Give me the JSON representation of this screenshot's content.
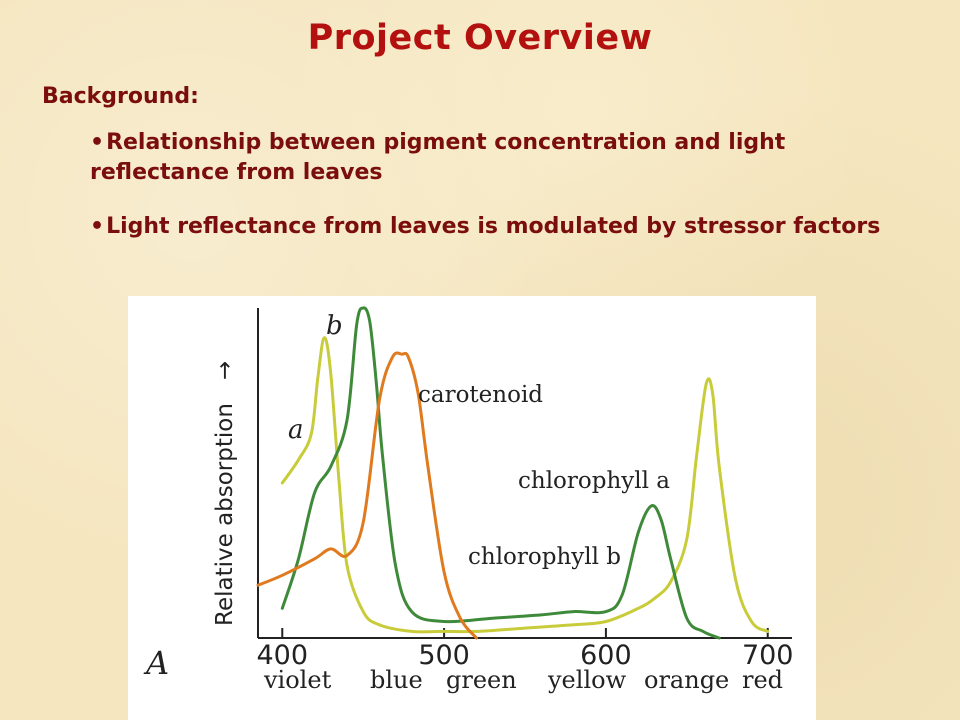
{
  "slide": {
    "title": "Project Overview",
    "heading": "Background:",
    "bullets": [
      "Relationship between pigment concentration and light reflectance from leaves",
      "Light reflectance from leaves is modulated by stressor factors"
    ],
    "bullet_symbol": "•"
  },
  "chart_data": {
    "type": "line",
    "panel_label": "A",
    "ylabel": "Relative absorption",
    "ylabel_arrow": "→",
    "xlim": [
      385,
      715
    ],
    "ylim": [
      0,
      1
    ],
    "x_ticks": [
      400,
      500,
      600,
      700
    ],
    "color_bands": [
      "violet",
      "blue",
      "green",
      "yellow",
      "orange",
      "red"
    ],
    "series": [
      {
        "name": "chlorophyll a",
        "tag": "a",
        "color": "#c8cc3a",
        "x": [
          400,
          410,
          418,
          422,
          426,
          430,
          435,
          440,
          450,
          460,
          480,
          500,
          520,
          550,
          580,
          600,
          620,
          630,
          640,
          650,
          656,
          662,
          666,
          670,
          680,
          690,
          700
        ],
        "y": [
          0.47,
          0.54,
          0.62,
          0.79,
          0.91,
          0.8,
          0.48,
          0.22,
          0.08,
          0.04,
          0.02,
          0.02,
          0.02,
          0.03,
          0.04,
          0.05,
          0.09,
          0.12,
          0.17,
          0.3,
          0.55,
          0.77,
          0.74,
          0.52,
          0.18,
          0.05,
          0.02
        ]
      },
      {
        "name": "chlorophyll b",
        "tag": "b",
        "color": "#3f8a3a",
        "x": [
          400,
          410,
          420,
          430,
          440,
          446,
          450,
          454,
          458,
          462,
          470,
          480,
          500,
          530,
          560,
          580,
          600,
          610,
          620,
          628,
          634,
          640,
          650,
          660,
          670
        ],
        "y": [
          0.09,
          0.24,
          0.44,
          0.52,
          0.66,
          0.95,
          1.0,
          0.96,
          0.78,
          0.55,
          0.22,
          0.08,
          0.05,
          0.06,
          0.07,
          0.08,
          0.08,
          0.13,
          0.32,
          0.4,
          0.36,
          0.24,
          0.06,
          0.02,
          0.0
        ]
      },
      {
        "name": "carotenoid",
        "color": "#e07a1f",
        "x": [
          385,
          400,
          420,
          430,
          440,
          450,
          460,
          468,
          474,
          478,
          484,
          490,
          500,
          510,
          520
        ],
        "y": [
          0.16,
          0.19,
          0.24,
          0.27,
          0.25,
          0.35,
          0.72,
          0.85,
          0.86,
          0.85,
          0.74,
          0.52,
          0.2,
          0.06,
          0.0
        ]
      }
    ]
  }
}
